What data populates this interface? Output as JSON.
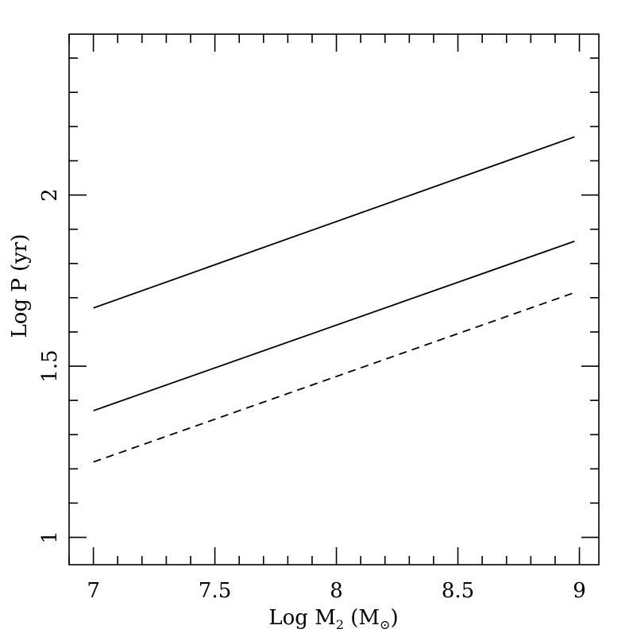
{
  "chart_data": {
    "type": "line",
    "xlabel": {
      "prefix": "Log M",
      "subscript": "2",
      "unit_open": " (M",
      "unit_symbol": "⊙",
      "unit_close": ")"
    },
    "ylabel": "Log P (yr)",
    "xlim": [
      6.9,
      9.08
    ],
    "ylim": [
      0.92,
      2.47
    ],
    "x_ticks": [
      {
        "value": 7,
        "label": "7"
      },
      {
        "value": 7.5,
        "label": "7.5"
      },
      {
        "value": 8,
        "label": "8"
      },
      {
        "value": 8.5,
        "label": "8.5"
      },
      {
        "value": 9,
        "label": "9"
      }
    ],
    "x_minor_step": 0.1,
    "y_ticks": [
      {
        "value": 1,
        "label": "1"
      },
      {
        "value": 1.5,
        "label": "1.5"
      },
      {
        "value": 2,
        "label": "2"
      }
    ],
    "y_minor_step": 0.1,
    "series": [
      {
        "x": [
          7,
          8.98
        ],
        "y": [
          1.67,
          2.17
        ],
        "style": "solid"
      },
      {
        "x": [
          7,
          8.98
        ],
        "y": [
          1.37,
          1.865
        ],
        "style": "solid"
      },
      {
        "x": [
          7,
          8.98
        ],
        "y": [
          1.22,
          1.715
        ],
        "style": "dashed"
      }
    ],
    "grid": false,
    "line_color": "#000000"
  }
}
